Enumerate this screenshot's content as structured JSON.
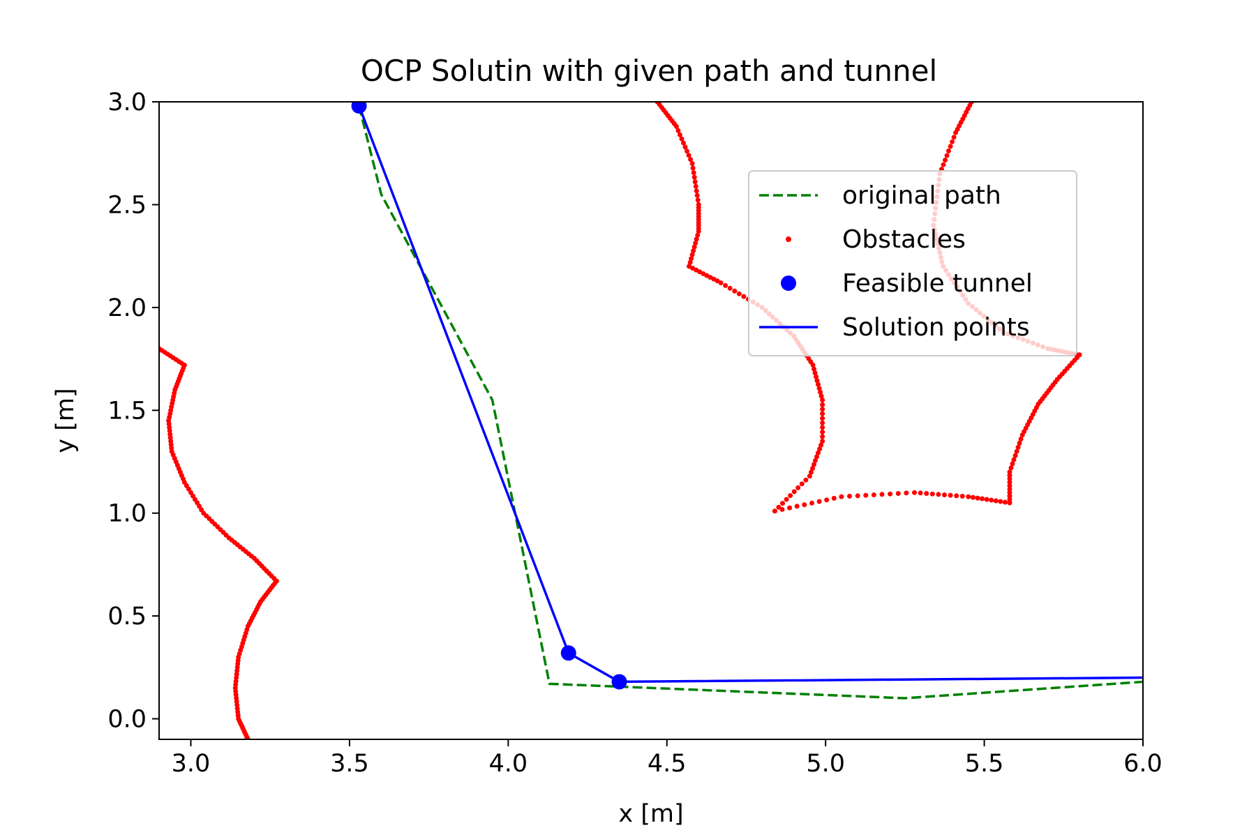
{
  "chart_data": {
    "type": "scatter",
    "title": "OCP Solutin with given path and tunnel",
    "xlabel": "x [m]",
    "ylabel": "y [m]",
    "xlim": [
      2.9,
      6.0
    ],
    "ylim": [
      -0.1,
      3.0
    ],
    "xticks": [
      "3.0",
      "3.5",
      "4.0",
      "4.5",
      "5.0",
      "5.5",
      "6.0"
    ],
    "yticks": [
      "0.0",
      "0.5",
      "1.0",
      "1.5",
      "2.0",
      "2.5",
      "3.0"
    ],
    "grid": false,
    "legend_position": "upper-right",
    "series": [
      {
        "name": "original path",
        "kind": "dashed-line",
        "color": "#008000",
        "points": [
          [
            3.53,
            2.98
          ],
          [
            3.6,
            2.55
          ],
          [
            3.95,
            1.55
          ],
          [
            4.13,
            0.17
          ],
          [
            5.25,
            0.1
          ],
          [
            6.0,
            0.18
          ]
        ]
      },
      {
        "name": "Obstacles",
        "kind": "dots",
        "color": "#ff0000",
        "curves": [
          [
            [
              2.9,
              1.8
            ],
            [
              2.98,
              1.72
            ],
            [
              2.95,
              1.6
            ],
            [
              2.93,
              1.45
            ],
            [
              2.94,
              1.3
            ],
            [
              2.98,
              1.15
            ],
            [
              3.04,
              1.0
            ],
            [
              3.12,
              0.88
            ],
            [
              3.2,
              0.78
            ],
            [
              3.27,
              0.67
            ]
          ],
          [
            [
              3.27,
              0.67
            ],
            [
              3.22,
              0.57
            ],
            [
              3.18,
              0.45
            ],
            [
              3.15,
              0.3
            ],
            [
              3.14,
              0.15
            ],
            [
              3.15,
              0.0
            ],
            [
              3.18,
              -0.1
            ]
          ],
          [
            [
              4.47,
              3.0
            ],
            [
              4.53,
              2.88
            ],
            [
              4.58,
              2.7
            ],
            [
              4.6,
              2.5
            ],
            [
              4.6,
              2.37
            ],
            [
              4.57,
              2.2
            ]
          ],
          [
            [
              4.57,
              2.2
            ],
            [
              4.67,
              2.12
            ],
            [
              4.8,
              2.0
            ],
            [
              4.9,
              1.86
            ],
            [
              4.96,
              1.72
            ],
            [
              4.99,
              1.55
            ],
            [
              4.99,
              1.35
            ],
            [
              4.95,
              1.18
            ],
            [
              4.84,
              1.01
            ]
          ],
          [
            [
              4.84,
              1.01
            ],
            [
              5.05,
              1.08
            ],
            [
              5.28,
              1.1
            ],
            [
              5.45,
              1.08
            ],
            [
              5.58,
              1.05
            ]
          ],
          [
            [
              5.58,
              1.05
            ],
            [
              5.58,
              1.2
            ],
            [
              5.62,
              1.38
            ],
            [
              5.67,
              1.53
            ],
            [
              5.73,
              1.65
            ],
            [
              5.8,
              1.77
            ]
          ],
          [
            [
              5.8,
              1.77
            ],
            [
              5.7,
              1.8
            ],
            [
              5.56,
              1.88
            ],
            [
              5.45,
              2.02
            ],
            [
              5.37,
              2.2
            ],
            [
              5.34,
              2.4
            ],
            [
              5.36,
              2.65
            ],
            [
              5.41,
              2.85
            ],
            [
              5.46,
              3.0
            ]
          ]
        ]
      },
      {
        "name": "Feasible tunnel",
        "kind": "markers",
        "color": "#0000ff",
        "points": [
          [
            3.53,
            2.98
          ],
          [
            4.19,
            0.32
          ],
          [
            4.35,
            0.18
          ]
        ]
      },
      {
        "name": "Solution points",
        "kind": "solid-line",
        "color": "#0000ff",
        "points": [
          [
            3.53,
            2.98
          ],
          [
            4.19,
            0.32
          ],
          [
            4.35,
            0.18
          ],
          [
            6.0,
            0.2
          ]
        ]
      }
    ]
  }
}
